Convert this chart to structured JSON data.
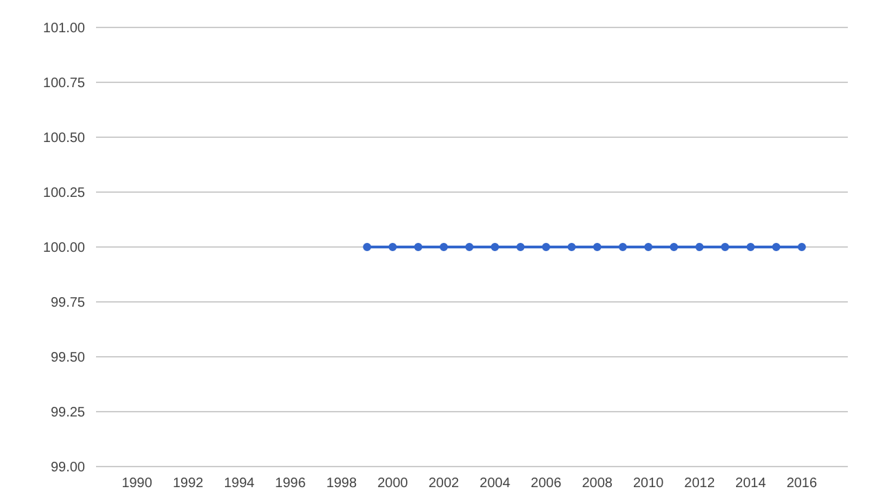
{
  "chart_data": {
    "type": "line",
    "x": [
      1999,
      2000,
      2001,
      2002,
      2003,
      2004,
      2005,
      2006,
      2007,
      2008,
      2009,
      2010,
      2011,
      2012,
      2013,
      2014,
      2015,
      2016
    ],
    "series": [
      {
        "color": "#3366cc",
        "values": [
          100,
          100,
          100,
          100,
          100,
          100,
          100,
          100,
          100,
          100,
          100,
          100,
          100,
          100,
          100,
          100,
          100,
          100
        ]
      }
    ],
    "xlim": [
      1988.4,
      2017.8
    ],
    "xticks": [
      1990,
      1992,
      1994,
      1996,
      1998,
      2000,
      2002,
      2004,
      2006,
      2008,
      2010,
      2012,
      2014,
      2016
    ],
    "ylim": [
      99,
      101
    ],
    "yticks": [
      {
        "value": 99,
        "label": "99.00"
      },
      {
        "value": 99.25,
        "label": "99.25"
      },
      {
        "value": 99.5,
        "label": "99.50"
      },
      {
        "value": 99.75,
        "label": "99.75"
      },
      {
        "value": 100,
        "label": "100.00"
      },
      {
        "value": 100.25,
        "label": "100.25"
      },
      {
        "value": 100.5,
        "label": "100.50"
      },
      {
        "value": 100.75,
        "label": "100.75"
      },
      {
        "value": 101,
        "label": "101.00"
      }
    ],
    "grid": "y",
    "legend": false,
    "marker": "circle",
    "line_style": "solid"
  }
}
